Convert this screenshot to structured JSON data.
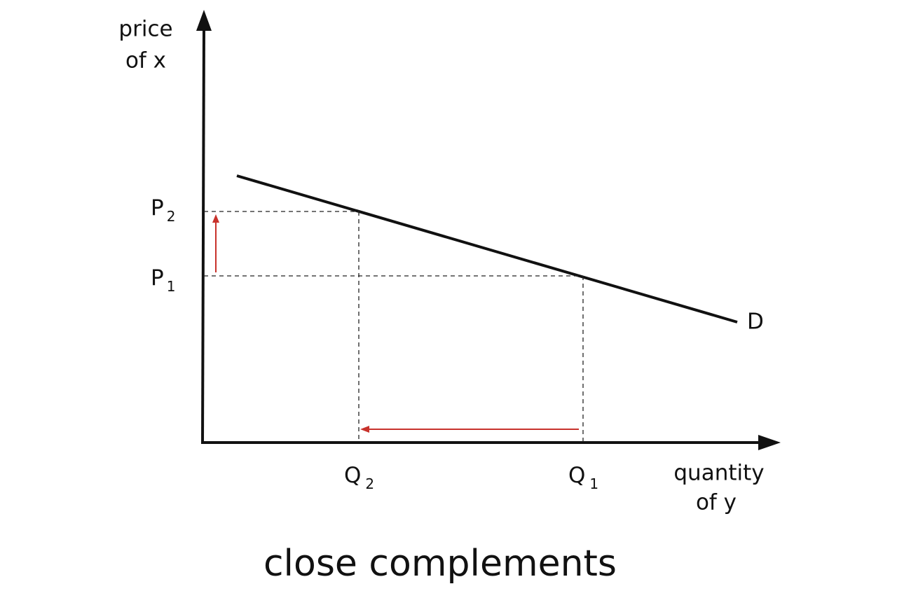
{
  "axes": {
    "y_label": [
      "price",
      "of x"
    ],
    "x_label": [
      "quantity",
      "of y"
    ]
  },
  "price_levels": [
    {
      "letter": "P",
      "subscript": "2"
    },
    {
      "letter": "P",
      "subscript": "1"
    }
  ],
  "quantity_levels": [
    {
      "letter": "Q",
      "subscript": "2"
    },
    {
      "letter": "Q",
      "subscript": "1"
    }
  ],
  "curve_label": "D",
  "caption": "close complements"
}
